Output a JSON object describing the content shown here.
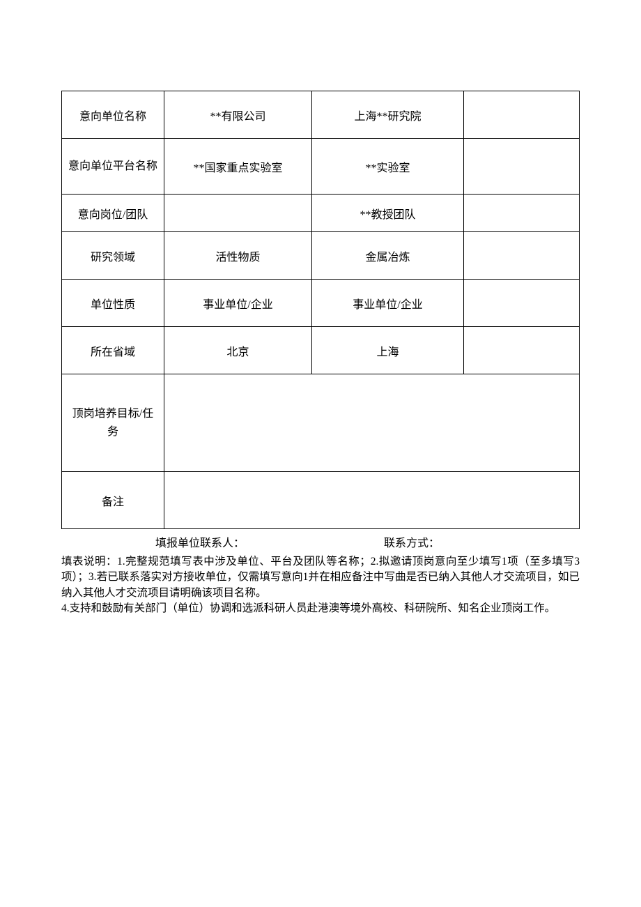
{
  "table": {
    "rows": [
      {
        "label": "意向单位名称",
        "col1": "**有限公司",
        "col2": "上海**研究院",
        "col3": ""
      },
      {
        "label": "意向单位平台名称",
        "col1": "**国家重点实验室",
        "col2": "**实验室",
        "col3": ""
      },
      {
        "label": "意向岗位/团队",
        "col1": "",
        "col2": "**教授团队",
        "col3": ""
      },
      {
        "label": "研究领域",
        "col1": "活性物质",
        "col2": "金属冶炼",
        "col3": ""
      },
      {
        "label": "单位性质",
        "col1": "事业单位/企业",
        "col2": "事业单位/企业",
        "col3": ""
      },
      {
        "label": "所在省域",
        "col1": "北京",
        "col2": "上海",
        "col3": ""
      },
      {
        "label": "顶岗培养目标/任务",
        "merged": ""
      },
      {
        "label": "备注",
        "merged": ""
      }
    ]
  },
  "contact": {
    "reporter_label": "填报单位联系人：",
    "contact_method_label": "联系方式："
  },
  "instructions": {
    "prefix": "填表说明：",
    "line1": "1.完整规范填写表中涉及单位、平台及团队等名称；2.拟邀请顶岗意向至少填写1项（至多填写3项）；3.若已联系落实对方接收单位，仅需填写意向1并在相应备注中写曲是否已纳入其他人才交流项目，如已纳入其他人才交流项目请明确该项目名称。",
    "line2": "4.支持和鼓励有关部门（单位）协调和选派科研人员赴港澳等境外高校、科研院所、知名企业顶岗工作。"
  },
  "colors": {
    "text": "#000000",
    "border": "#000000",
    "background": "#ffffff"
  },
  "typography": {
    "body_fontsize": 16,
    "instructions_fontsize": 15.5,
    "font_family": "SimSun"
  }
}
